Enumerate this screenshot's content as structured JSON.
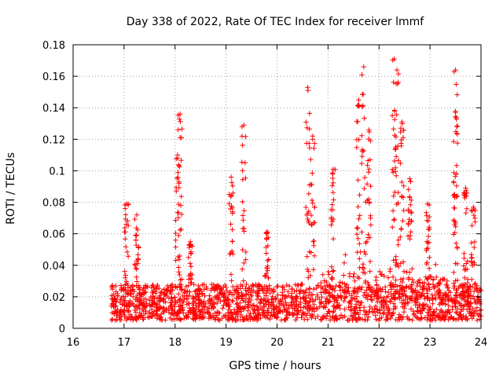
{
  "chart_data": {
    "type": "scatter",
    "title": "Day 338 of 2022, Rate Of TEC Index for receiver lmmf",
    "xlabel": "GPS time / hours",
    "ylabel": "ROTI / TECUs",
    "xlim": [
      16,
      24
    ],
    "ylim": [
      0,
      0.18
    ],
    "xticks": [
      16,
      17,
      18,
      19,
      20,
      21,
      22,
      23,
      24
    ],
    "yticks": [
      0,
      0.02,
      0.04,
      0.06,
      0.08,
      0.1,
      0.12,
      0.14,
      0.16,
      0.18
    ],
    "xtick_labels": [
      "16",
      "17",
      "18",
      "19",
      "20",
      "21",
      "22",
      "23",
      "24"
    ],
    "ytick_labels": [
      "0",
      "0.02",
      "0.04",
      "0.06",
      "0.08",
      "0.1",
      "0.12",
      "0.14",
      "0.16",
      "0.18"
    ],
    "grid": true,
    "marker": "+",
    "color": "#ff0000",
    "series": [
      {
        "name": "ROTI",
        "x_range": [
          16.75,
          24
        ],
        "baseline": {
          "typical_min": 0.005,
          "typical_max": 0.028
        },
        "peaks": [
          {
            "x": 17.05,
            "y": 0.079
          },
          {
            "x": 17.25,
            "y": 0.072
          },
          {
            "x": 18.05,
            "y": 0.11
          },
          {
            "x": 18.1,
            "y": 0.136
          },
          {
            "x": 18.3,
            "y": 0.055
          },
          {
            "x": 19.1,
            "y": 0.096
          },
          {
            "x": 19.35,
            "y": 0.129
          },
          {
            "x": 19.8,
            "y": 0.061
          },
          {
            "x": 20.6,
            "y": 0.153
          },
          {
            "x": 20.7,
            "y": 0.122
          },
          {
            "x": 21.1,
            "y": 0.101
          },
          {
            "x": 21.6,
            "y": 0.145
          },
          {
            "x": 21.7,
            "y": 0.166
          },
          {
            "x": 21.8,
            "y": 0.126
          },
          {
            "x": 22.3,
            "y": 0.171
          },
          {
            "x": 22.35,
            "y": 0.164
          },
          {
            "x": 22.45,
            "y": 0.131
          },
          {
            "x": 22.6,
            "y": 0.095
          },
          {
            "x": 22.95,
            "y": 0.079
          },
          {
            "x": 23.5,
            "y": 0.164
          },
          {
            "x": 23.5,
            "y": 0.137
          },
          {
            "x": 23.7,
            "y": 0.089
          },
          {
            "x": 23.85,
            "y": 0.077
          }
        ]
      }
    ]
  }
}
